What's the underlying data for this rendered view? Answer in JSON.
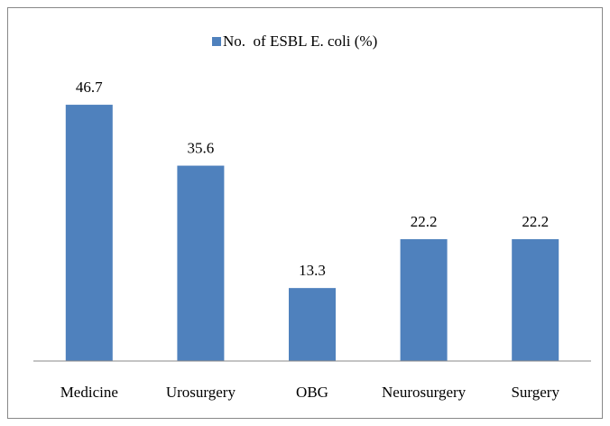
{
  "chart_data": {
    "type": "bar",
    "categories": [
      "Medicine",
      "Urosurgery",
      "OBG",
      "Neurosurgery",
      "Surgery"
    ],
    "series": [
      {
        "name": "No.  of ESBL E. coli (%)",
        "color": "#4f81bd",
        "values": [
          46.7,
          35.6,
          13.3,
          22.2,
          22.2
        ]
      }
    ],
    "ylim": [
      0,
      50
    ],
    "legend": "top"
  }
}
